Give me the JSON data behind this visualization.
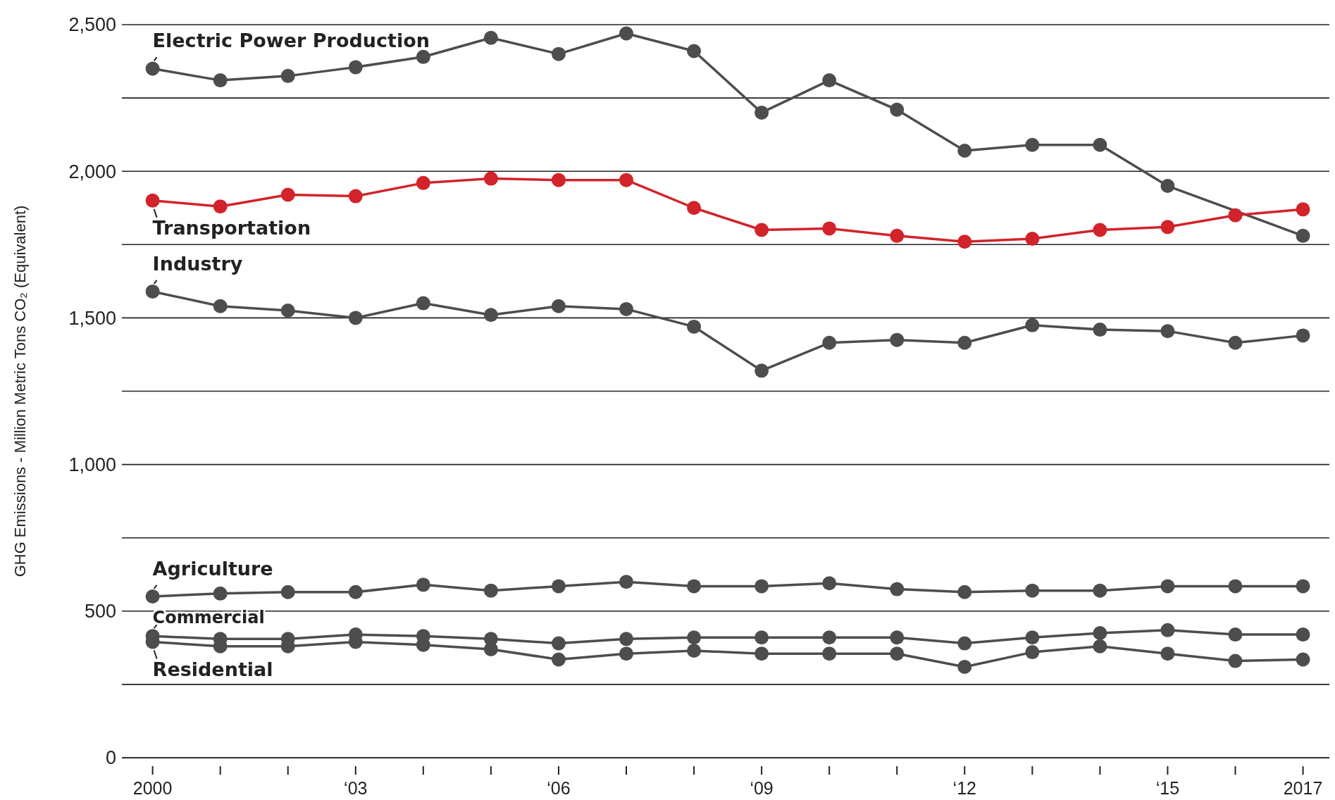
{
  "chart_data": {
    "type": "line",
    "ylabel": "GHG Emissions - Million Metric Tons CO₂ (Equivalent)",
    "categories": [
      "2000",
      null,
      null,
      "‘03",
      null,
      null,
      "‘06",
      null,
      null,
      "‘09",
      null,
      null,
      "‘12",
      null,
      null,
      "‘15",
      null,
      "2017"
    ],
    "ylim": [
      0,
      2500
    ],
    "yticks": [
      0,
      {
        "value": 250,
        "label": null
      },
      500,
      {
        "value": 750,
        "label": null
      },
      {
        "value": 1000,
        "label": "1,000"
      },
      {
        "value": 1250,
        "label": null
      },
      {
        "value": 1500,
        "label": "1,500"
      },
      {
        "value": 1750,
        "label": null
      },
      {
        "value": 2000,
        "label": "2,000"
      },
      {
        "value": 2250,
        "label": null
      },
      {
        "value": 2500,
        "label": "2,500"
      }
    ],
    "grid": "y",
    "marker": "circle",
    "line_style": "solid",
    "legend": false,
    "series": [
      {
        "name": "Electric Power Production",
        "color": "#4d4d4d",
        "values": [
          2350,
          2310,
          2325,
          2355,
          2390,
          2455,
          2400,
          2470,
          2410,
          2200,
          2310,
          2210,
          2070,
          2090,
          2090,
          1950,
          null,
          1780
        ]
      },
      {
        "name": "Transportation",
        "color": "#d2232a",
        "values": [
          1900,
          1880,
          1920,
          1915,
          1960,
          1975,
          1970,
          1970,
          1875,
          1800,
          1805,
          1780,
          1760,
          1770,
          1800,
          1810,
          1850,
          1870
        ]
      },
      {
        "name": "Industry",
        "color": "#4d4d4d",
        "values": [
          1590,
          1540,
          1525,
          1500,
          1550,
          1510,
          1540,
          1530,
          1470,
          1320,
          1415,
          1425,
          1415,
          1475,
          1460,
          1455,
          1415,
          1440
        ]
      },
      {
        "name": "Agriculture",
        "color": "#4d4d4d",
        "values": [
          550,
          560,
          565,
          565,
          590,
          570,
          585,
          600,
          585,
          585,
          595,
          575,
          565,
          570,
          570,
          585,
          585,
          585
        ]
      },
      {
        "name": "Commercial",
        "color": "#4d4d4d",
        "values": [
          415,
          405,
          405,
          420,
          415,
          405,
          390,
          405,
          410,
          410,
          410,
          410,
          390,
          410,
          425,
          435,
          420,
          420
        ]
      },
      {
        "name": "Residential",
        "color": "#4d4d4d",
        "values": [
          395,
          380,
          380,
          395,
          385,
          370,
          335,
          355,
          365,
          355,
          355,
          355,
          310,
          360,
          380,
          355,
          330,
          335
        ]
      }
    ]
  }
}
